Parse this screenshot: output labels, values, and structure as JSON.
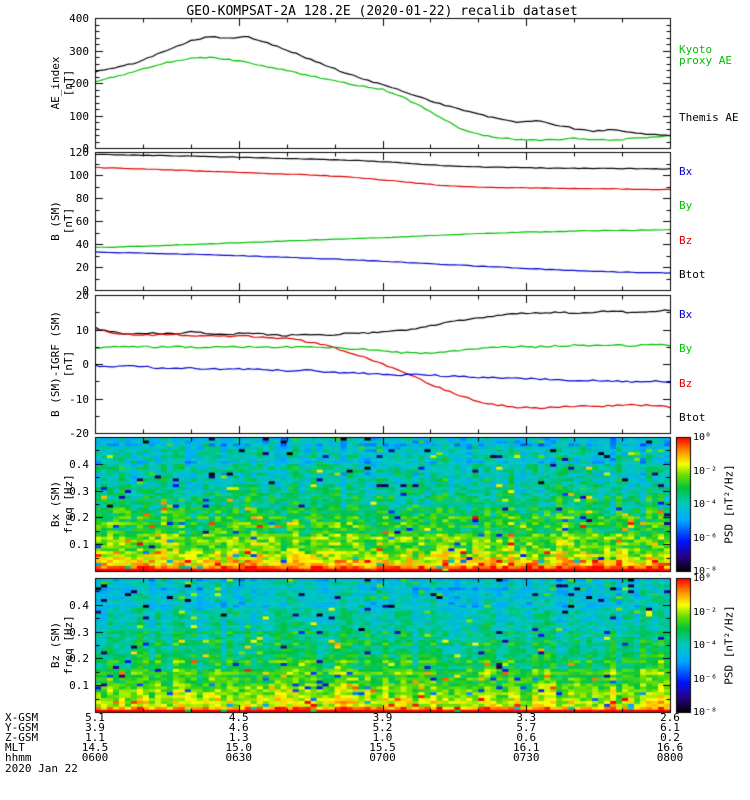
{
  "title": "GEO-KOMPSAT-2A 128.2E (2020-01-22) recalib dataset",
  "x_axis": {
    "range_minutes": [
      0,
      120
    ],
    "tick_minutes": [
      0,
      30,
      60,
      90,
      120
    ],
    "tick_labels": [
      "0600",
      "0630",
      "0700",
      "0730",
      "0800"
    ]
  },
  "chart_data": [
    {
      "type": "line",
      "name": "ae-index-panel",
      "ylabel": "AE_index\n[nT]",
      "ylim": [
        0,
        400
      ],
      "ytick_vals": [
        0,
        100,
        200,
        300,
        400
      ],
      "ytick_labels": [
        "0",
        "100",
        "200",
        "300",
        "400"
      ],
      "yminor": 20,
      "x_step_min": 4,
      "series": [
        {
          "name": "Kyoto proxy AE",
          "color": "#00c000",
          "noise": 4,
          "values": [
            205,
            218,
            235,
            252,
            266,
            276,
            279,
            272,
            262,
            250,
            238,
            225,
            212,
            200,
            190,
            180,
            158,
            128,
            95,
            62,
            42,
            32,
            27,
            23,
            26,
            30,
            27,
            24,
            29,
            33,
            38
          ]
        },
        {
          "name": "Themis AE",
          "color": "#000000",
          "noise": 4,
          "values": [
            235,
            246,
            260,
            282,
            308,
            330,
            344,
            337,
            342,
            324,
            302,
            278,
            255,
            232,
            212,
            195,
            176,
            156,
            136,
            120,
            104,
            90,
            80,
            84,
            72,
            60,
            52,
            56,
            48,
            42,
            38
          ]
        }
      ],
      "legend": [
        {
          "label": "Kyoto\nproxy AE",
          "color": "#00c000"
        },
        {
          "label": "Themis AE",
          "color": "#000000"
        }
      ]
    },
    {
      "type": "line",
      "name": "b-sm-panel",
      "ylabel": "B (SM)\n[nT]",
      "ylim": [
        0,
        120
      ],
      "ytick_vals": [
        0,
        20,
        40,
        60,
        80,
        100,
        120
      ],
      "ytick_labels": [
        "0",
        "20",
        "40",
        "60",
        "80",
        "100",
        "120"
      ],
      "yminor": 10,
      "x_step_min": 4,
      "series": [
        {
          "name": "Btot",
          "color": "#000000",
          "noise": 0.5,
          "values": [
            118,
            117.6,
            117.3,
            117,
            116.7,
            116.4,
            116,
            115.6,
            115.2,
            114.8,
            114.4,
            114,
            113.5,
            113,
            112.4,
            111.6,
            110.6,
            109.4,
            108.2,
            107.4,
            107,
            106.7,
            106.4,
            106.2,
            106,
            105.8,
            105.7,
            105.6,
            105.5,
            105.4,
            105.3
          ]
        },
        {
          "name": "Bz",
          "color": "#dd0000",
          "noise": 0.5,
          "values": [
            106.5,
            106,
            105.5,
            105,
            104.4,
            103.8,
            103.2,
            102.6,
            102,
            101.4,
            100.8,
            100.2,
            99.4,
            98.4,
            97.2,
            95.8,
            94.2,
            92.6,
            91.2,
            90.2,
            89.6,
            89.2,
            88.9,
            88.7,
            88.5,
            88.3,
            88.1,
            87.9,
            87.7,
            87.5,
            87.3
          ]
        },
        {
          "name": "By",
          "color": "#00c000",
          "noise": 0.5,
          "values": [
            37,
            37.3,
            37.8,
            38.4,
            39,
            39.6,
            40.2,
            40.8,
            41.4,
            42,
            42.6,
            43.2,
            43.8,
            44.4,
            45,
            45.6,
            46.2,
            46.9,
            47.6,
            48.3,
            49,
            49.6,
            50.1,
            50.5,
            50.9,
            51.2,
            51.5,
            51.7,
            51.9,
            52.1,
            52.3
          ]
        },
        {
          "name": "Bx",
          "color": "#0000cc",
          "noise": 0.5,
          "values": [
            33,
            32.6,
            32.2,
            31.8,
            31.4,
            31,
            30.5,
            30,
            29.5,
            29,
            28.4,
            27.8,
            27.2,
            26.5,
            25.8,
            25,
            24.2,
            23.4,
            22.5,
            21.6,
            20.8,
            20,
            19.2,
            18.4,
            17.6,
            16.9,
            16.3,
            15.8,
            15.4,
            15.1,
            14.9
          ]
        }
      ],
      "legend": [
        {
          "label": "Bx",
          "color": "#0000cc"
        },
        {
          "label": "By",
          "color": "#00c000"
        },
        {
          "label": "Bz",
          "color": "#dd0000"
        },
        {
          "label": "Btot",
          "color": "#000000"
        }
      ]
    },
    {
      "type": "line",
      "name": "b-sm-minus-igrf-panel",
      "ylabel": "B (SM)-IGRF (SM)\n[nT]",
      "ylim": [
        -20,
        20
      ],
      "ytick_vals": [
        -20,
        -10,
        0,
        10,
        20
      ],
      "ytick_labels": [
        "-20",
        "-10",
        "0",
        "10",
        "20"
      ],
      "yminor": 5,
      "x_step_min": 4,
      "series": [
        {
          "name": "Btot",
          "color": "#000000",
          "noise": 0.5,
          "values": [
            10.5,
            9.2,
            8.6,
            9.0,
            8.7,
            9.3,
            8.8,
            8.5,
            9.0,
            8.6,
            8.3,
            8.6,
            8.4,
            8.7,
            9.0,
            9.3,
            9.8,
            10.6,
            11.6,
            12.6,
            13.4,
            14.0,
            14.5,
            14.8,
            15.0,
            14.8,
            15.1,
            15.3,
            15.0,
            15.3,
            15.6
          ]
        },
        {
          "name": "Bz",
          "color": "#dd0000",
          "noise": 0.5,
          "values": [
            10.0,
            9.0,
            8.6,
            8.4,
            8.5,
            8.3,
            8.2,
            8.0,
            8.1,
            7.8,
            7.4,
            6.6,
            5.4,
            3.8,
            2.0,
            0.0,
            -2.2,
            -4.6,
            -7.0,
            -9.2,
            -10.8,
            -11.9,
            -12.5,
            -12.8,
            -12.5,
            -12.2,
            -12.4,
            -12.0,
            -11.8,
            -12.1,
            -12.4
          ]
        },
        {
          "name": "By",
          "color": "#00c000",
          "noise": 0.5,
          "values": [
            4.5,
            5.0,
            5.2,
            4.9,
            5.1,
            4.8,
            5.0,
            5.2,
            4.9,
            4.7,
            4.9,
            5.1,
            4.8,
            4.5,
            4.2,
            3.8,
            3.3,
            3.0,
            3.4,
            3.9,
            4.4,
            4.8,
            5.1,
            5.0,
            5.2,
            5.4,
            5.2,
            5.4,
            5.3,
            5.5,
            5.4
          ]
        },
        {
          "name": "Bx",
          "color": "#0000cc",
          "noise": 0.5,
          "values": [
            -0.5,
            -0.8,
            -0.6,
            -1.0,
            -1.3,
            -1.1,
            -1.4,
            -1.6,
            -1.4,
            -1.7,
            -2.0,
            -1.8,
            -2.2,
            -2.5,
            -2.7,
            -3.0,
            -3.2,
            -3.0,
            -3.4,
            -3.7,
            -3.9,
            -4.1,
            -4.0,
            -4.3,
            -4.6,
            -4.8,
            -4.6,
            -4.9,
            -5.1,
            -5.0,
            -5.2
          ]
        }
      ],
      "legend": [
        {
          "label": "Bx",
          "color": "#0000cc"
        },
        {
          "label": "By",
          "color": "#00c000"
        },
        {
          "label": "Bz",
          "color": "#dd0000"
        },
        {
          "label": "Btot",
          "color": "#000000"
        }
      ]
    },
    {
      "type": "heatmap",
      "name": "bx-spectrogram-panel",
      "ylabel": "Bx (SM)\nfreq [Hz]",
      "ylim": [
        0,
        0.5
      ],
      "ytick_vals": [
        0.1,
        0.2,
        0.3,
        0.4
      ],
      "ytick_labels": [
        "0.1",
        "0.2",
        "0.3",
        "0.4"
      ],
      "yminor": 0.05,
      "psd_range_log10": [
        -8,
        0
      ],
      "seed": 11,
      "time_bins": 96,
      "freq_bins": 46,
      "profile": {
        "base": -0.8,
        "slope": -3.6,
        "noise": 0.8,
        "low_freq_boost": 1.6
      },
      "cbar_label": "PSD [nT²/Hz]"
    },
    {
      "type": "heatmap",
      "name": "bz-spectrogram-panel",
      "ylabel": "Bz (SM)\nfreq [Hz]",
      "ylim": [
        0,
        0.5
      ],
      "ytick_vals": [
        0.1,
        0.2,
        0.3,
        0.4
      ],
      "ytick_labels": [
        "0.1",
        "0.2",
        "0.3",
        "0.4"
      ],
      "yminor": 0.05,
      "psd_range_log10": [
        -8,
        0
      ],
      "seed": 23,
      "time_bins": 96,
      "freq_bins": 46,
      "profile": {
        "base": -1.0,
        "slope": -3.4,
        "noise": 0.6,
        "low_freq_boost": 1.4
      },
      "cbar_label": "PSD [nT²/Hz]"
    }
  ],
  "colorbar": {
    "tick_labels": [
      "10⁰",
      "10⁻²",
      "10⁻⁴",
      "10⁻⁶",
      "10⁻⁸"
    ]
  },
  "bottom": {
    "rows": [
      {
        "label": "X-GSM",
        "values": [
          "5.1",
          "4.5",
          "3.9",
          "3.3",
          "2.6"
        ]
      },
      {
        "label": "Y-GSM",
        "values": [
          "3.9",
          "4.6",
          "5.2",
          "5.7",
          "6.1"
        ]
      },
      {
        "label": "Z-GSM",
        "values": [
          "1.1",
          "1.3",
          "1.0",
          "0.6",
          "0.2"
        ]
      },
      {
        "label": "MLT",
        "values": [
          "14.5",
          "15.0",
          "15.5",
          "16.1",
          "16.6"
        ]
      },
      {
        "label": "hhmm",
        "values": [
          "0600",
          "0630",
          "0700",
          "0730",
          "0800"
        ]
      }
    ],
    "date": "2020 Jan 22"
  }
}
